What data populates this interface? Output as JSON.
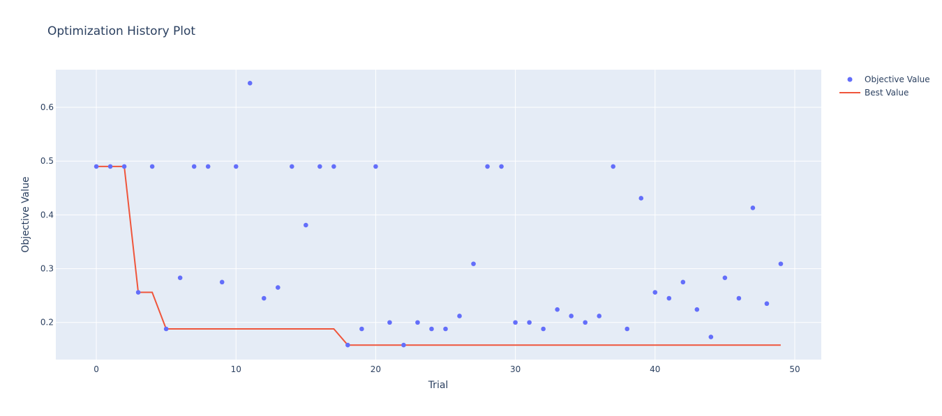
{
  "chart_data": {
    "type": "scatter",
    "title": "Optimization History Plot",
    "xlabel": "Trial",
    "ylabel": "Objective Value",
    "xlim": [
      -2.9,
      51.9
    ],
    "ylim": [
      0.131,
      0.67
    ],
    "xticks": [
      0,
      10,
      20,
      30,
      40,
      50
    ],
    "yticks": [
      0.2,
      0.3,
      0.4,
      0.5,
      0.6
    ],
    "grid": true,
    "legend_position": "top-right",
    "colors": {
      "plot_bg": "#e5ecf6",
      "grid": "#ffffff",
      "points": "#636efa",
      "line": "#ef553b",
      "text": "#2a3f5f"
    },
    "series": [
      {
        "name": "Objective Value",
        "mode": "markers",
        "x": [
          0,
          1,
          2,
          3,
          4,
          5,
          6,
          7,
          8,
          9,
          10,
          11,
          12,
          13,
          14,
          15,
          16,
          17,
          18,
          19,
          20,
          21,
          22,
          23,
          24,
          25,
          26,
          27,
          28,
          29,
          30,
          31,
          32,
          33,
          34,
          35,
          36,
          37,
          38,
          39,
          40,
          41,
          42,
          43,
          44,
          45,
          46,
          47,
          48,
          49
        ],
        "y": [
          0.49,
          0.49,
          0.49,
          0.256,
          0.49,
          0.188,
          0.283,
          0.49,
          0.49,
          0.275,
          0.49,
          0.645,
          0.245,
          0.265,
          0.49,
          0.381,
          0.49,
          0.49,
          0.158,
          0.188,
          0.49,
          0.2,
          0.158,
          0.2,
          0.188,
          0.188,
          0.212,
          0.309,
          0.49,
          0.49,
          0.2,
          0.2,
          0.188,
          0.224,
          0.212,
          0.2,
          0.212,
          0.49,
          0.188,
          0.431,
          0.256,
          0.245,
          0.275,
          0.224,
          0.173,
          0.283,
          0.245,
          0.413,
          0.235,
          0.309
        ]
      },
      {
        "name": "Best Value",
        "mode": "lines",
        "x": [
          0,
          1,
          2,
          3,
          4,
          5,
          6,
          7,
          8,
          9,
          10,
          11,
          12,
          13,
          14,
          15,
          16,
          17,
          18,
          19,
          20,
          21,
          22,
          23,
          24,
          25,
          26,
          27,
          28,
          29,
          30,
          31,
          32,
          33,
          34,
          35,
          36,
          37,
          38,
          39,
          40,
          41,
          42,
          43,
          44,
          45,
          46,
          47,
          48,
          49
        ],
        "y": [
          0.49,
          0.49,
          0.49,
          0.256,
          0.256,
          0.188,
          0.188,
          0.188,
          0.188,
          0.188,
          0.188,
          0.188,
          0.188,
          0.188,
          0.188,
          0.188,
          0.188,
          0.188,
          0.158,
          0.158,
          0.158,
          0.158,
          0.158,
          0.158,
          0.158,
          0.158,
          0.158,
          0.158,
          0.158,
          0.158,
          0.158,
          0.158,
          0.158,
          0.158,
          0.158,
          0.158,
          0.158,
          0.158,
          0.158,
          0.158,
          0.158,
          0.158,
          0.158,
          0.158,
          0.158,
          0.158,
          0.158,
          0.158,
          0.158,
          0.158
        ]
      }
    ]
  }
}
